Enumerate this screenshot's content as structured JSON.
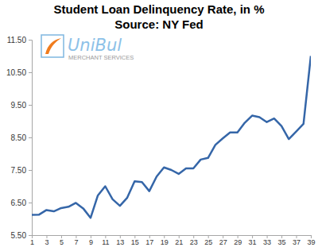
{
  "chart_data": {
    "type": "line",
    "title": "Student Loan Delinquency Rate, in %",
    "subtitle": "Source: NY Fed",
    "annotations": [
      "UniBul",
      "MERCHANT SERVICES"
    ],
    "x": [
      1,
      2,
      3,
      4,
      5,
      6,
      7,
      8,
      9,
      10,
      11,
      12,
      13,
      14,
      15,
      16,
      17,
      18,
      19,
      20,
      21,
      22,
      23,
      24,
      25,
      26,
      27,
      28,
      29,
      30,
      31,
      32,
      33,
      34,
      35,
      36,
      37,
      38,
      39
    ],
    "values": [
      6.12,
      6.13,
      6.27,
      6.23,
      6.33,
      6.37,
      6.49,
      6.32,
      6.03,
      6.72,
      7.0,
      6.6,
      6.4,
      6.65,
      7.15,
      7.13,
      6.85,
      7.3,
      7.58,
      7.5,
      7.38,
      7.55,
      7.55,
      7.82,
      7.87,
      8.27,
      8.47,
      8.65,
      8.65,
      8.95,
      9.17,
      9.12,
      8.97,
      9.08,
      8.85,
      8.45,
      8.68,
      8.92,
      11.0
    ],
    "color": "#3566a8",
    "xlim": [
      1,
      39
    ],
    "xticks": [
      1,
      3,
      5,
      7,
      9,
      11,
      13,
      15,
      17,
      19,
      21,
      23,
      25,
      27,
      29,
      31,
      33,
      35,
      37,
      39
    ],
    "ylim": [
      5.5,
      11.5
    ],
    "yticks": [
      {
        "value": 5.5,
        "label": "5.50"
      },
      {
        "value": 6.5,
        "label": "6.50"
      },
      {
        "value": 7.5,
        "label": "7.50"
      },
      {
        "value": 8.5,
        "label": "8.50"
      },
      {
        "value": 9.5,
        "label": "9.50"
      },
      {
        "value": 10.5,
        "label": "10.50"
      },
      {
        "value": 11.5,
        "label": "11.50"
      }
    ],
    "grid": false
  }
}
